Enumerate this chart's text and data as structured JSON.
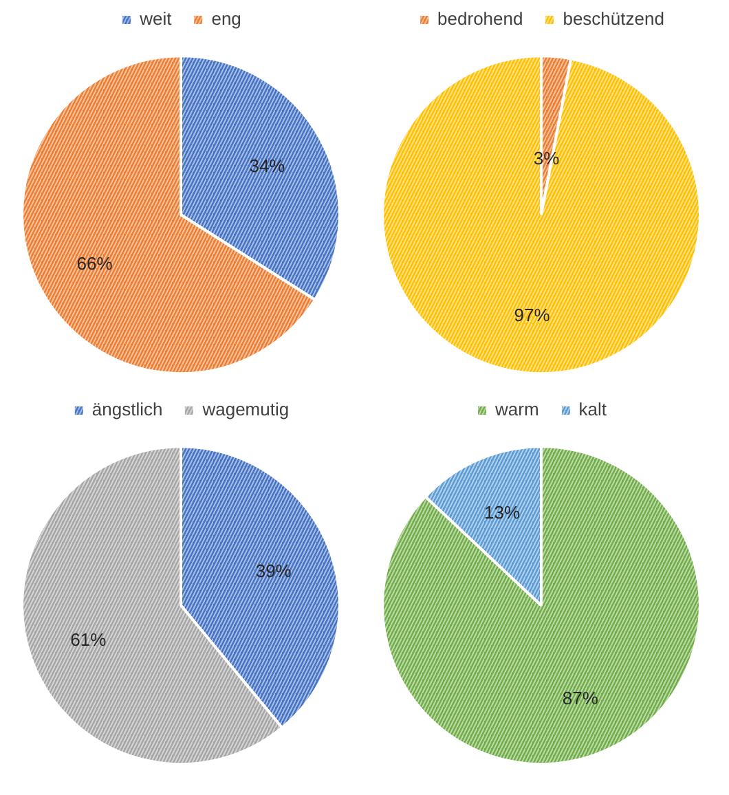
{
  "chart_data": [
    {
      "type": "pie",
      "categories": [
        "weit",
        "eng"
      ],
      "values": [
        34,
        66
      ],
      "colors": [
        "#4472c4",
        "#ed7d31"
      ],
      "value_labels": [
        "34%",
        "66%"
      ],
      "legend": "top"
    },
    {
      "type": "pie",
      "categories": [
        "bedrohend",
        "beschützend"
      ],
      "values": [
        3,
        97
      ],
      "colors": [
        "#ed7d31",
        "#ffc000"
      ],
      "value_labels": [
        "3%",
        "97%"
      ],
      "legend": "top"
    },
    {
      "type": "pie",
      "categories": [
        "ängstlich",
        "wagemutig"
      ],
      "values": [
        39,
        61
      ],
      "colors": [
        "#4472c4",
        "#a5a5a5"
      ],
      "value_labels": [
        "39%",
        "61%"
      ],
      "legend": "top"
    },
    {
      "type": "pie",
      "categories": [
        "warm",
        "kalt"
      ],
      "values": [
        87,
        13
      ],
      "colors": [
        "#70ad47",
        "#5b9bd5"
      ],
      "value_labels": [
        "87%",
        "13%"
      ],
      "legend": "top"
    }
  ]
}
